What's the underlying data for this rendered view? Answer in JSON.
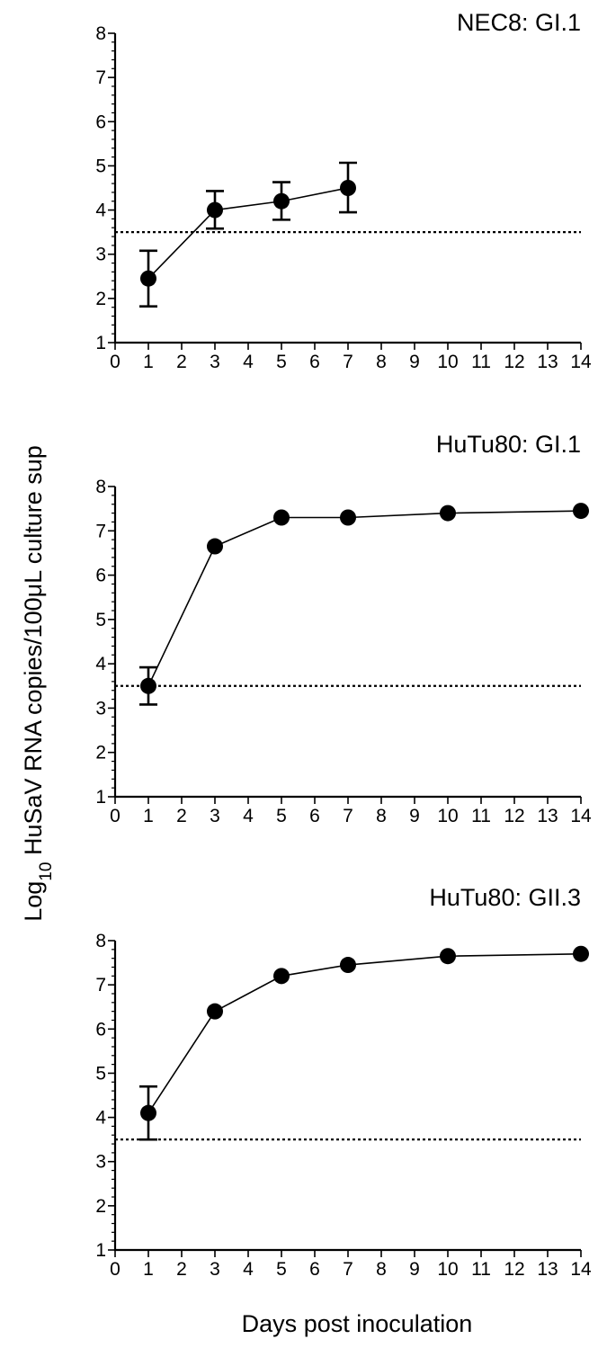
{
  "figure": {
    "ylabel": "Log10 HuSaV RNA copies/100μL culture sup",
    "ylabel_main": "Log",
    "ylabel_sub": "10",
    "ylabel_rest": " HuSaV RNA copies/100μL culture sup",
    "xlabel": "Days post inoculation"
  },
  "chart_data": [
    {
      "type": "line",
      "title": "NEC8: GI.1",
      "xlim": [
        0,
        14
      ],
      "ylim": [
        1,
        8
      ],
      "xticks": [
        "0",
        "1",
        "2",
        "3",
        "4",
        "5",
        "6",
        "7",
        "8",
        "9",
        "10",
        "11",
        "12",
        "13",
        "14"
      ],
      "yticks": [
        "1",
        "2",
        "3",
        "4",
        "5",
        "6",
        "7",
        "8"
      ],
      "threshold": 3.5,
      "grid": false,
      "series": [
        {
          "x": [
            1,
            3,
            5,
            7
          ],
          "y": [
            2.45,
            4.0,
            4.2,
            4.5
          ],
          "err_low": [
            1.82,
            3.58,
            3.78,
            3.95
          ],
          "err_high": [
            3.08,
            4.43,
            4.63,
            5.07
          ]
        }
      ]
    },
    {
      "type": "line",
      "title": "HuTu80: GI.1",
      "xlim": [
        0,
        14
      ],
      "ylim": [
        1,
        8
      ],
      "xticks": [
        "0",
        "1",
        "2",
        "3",
        "4",
        "5",
        "6",
        "7",
        "8",
        "9",
        "10",
        "11",
        "12",
        "13",
        "14"
      ],
      "yticks": [
        "1",
        "2",
        "3",
        "4",
        "5",
        "6",
        "7",
        "8"
      ],
      "threshold": 3.5,
      "grid": false,
      "series": [
        {
          "x": [
            1,
            3,
            5,
            7,
            10,
            14
          ],
          "y": [
            3.5,
            6.65,
            7.3,
            7.3,
            7.4,
            7.45
          ],
          "err_low": [
            3.08,
            null,
            null,
            null,
            null,
            null
          ],
          "err_high": [
            3.92,
            null,
            null,
            null,
            null,
            null
          ]
        }
      ]
    },
    {
      "type": "line",
      "title": "HuTu80: GII.3",
      "xlim": [
        0,
        14
      ],
      "ylim": [
        1,
        8
      ],
      "xticks": [
        "0",
        "1",
        "2",
        "3",
        "4",
        "5",
        "6",
        "7",
        "8",
        "9",
        "10",
        "11",
        "12",
        "13",
        "14"
      ],
      "yticks": [
        "1",
        "2",
        "3",
        "4",
        "5",
        "6",
        "7",
        "8"
      ],
      "threshold": 3.5,
      "grid": false,
      "series": [
        {
          "x": [
            1,
            3,
            5,
            7,
            10,
            14
          ],
          "y": [
            4.1,
            6.4,
            7.2,
            7.45,
            7.65,
            7.7
          ],
          "err_low": [
            3.5,
            null,
            null,
            null,
            null,
            null
          ],
          "err_high": [
            4.7,
            null,
            null,
            null,
            null,
            null
          ]
        }
      ]
    }
  ]
}
